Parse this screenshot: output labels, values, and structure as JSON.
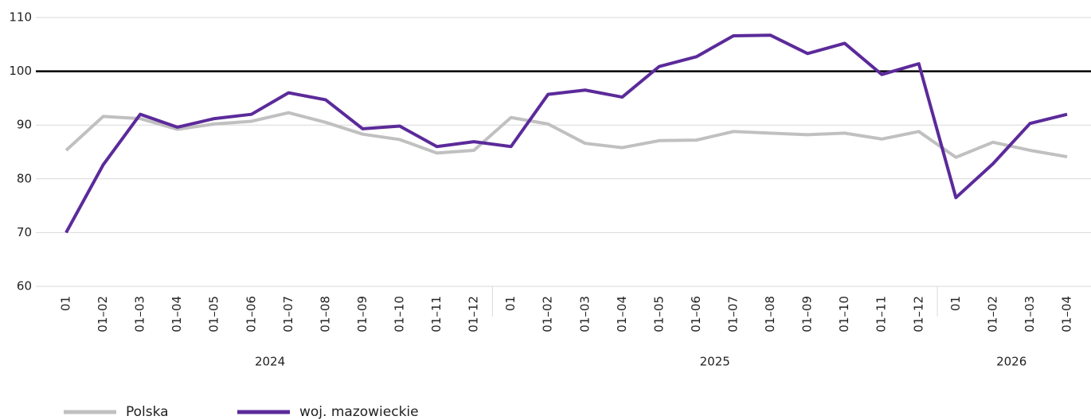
{
  "chart_data": {
    "type": "line",
    "categories": [
      "01",
      "01–02",
      "01–03",
      "01–04",
      "01–05",
      "01–06",
      "01–07",
      "01–08",
      "01–09",
      "01–10",
      "01–11",
      "01–12",
      "01",
      "01–02",
      "01–03",
      "01–04",
      "01–05",
      "01–06",
      "01–07",
      "01–08",
      "01–09",
      "01–10",
      "01–11",
      "01–12",
      "01",
      "01–02",
      "01–03",
      "01–04"
    ],
    "groups": [
      {
        "label": "2024",
        "count": 12
      },
      {
        "label": "2025",
        "count": 12
      },
      {
        "label": "2026",
        "count": 4
      }
    ],
    "series": [
      {
        "name": "Polska",
        "color": "#c0c0c0",
        "values": [
          85.3,
          91.6,
          91.2,
          89.2,
          90.2,
          90.7,
          92.3,
          90.5,
          88.3,
          87.3,
          84.8,
          85.3,
          91.4,
          90.2,
          86.6,
          85.8,
          87.1,
          87.2,
          88.8,
          88.5,
          88.2,
          88.5,
          87.4,
          88.8,
          84.0,
          86.8,
          85.3,
          84.1
        ]
      },
      {
        "name": "woj. mazowieckie",
        "color": "#5b2a9a",
        "values": [
          70.0,
          82.6,
          92.0,
          89.6,
          91.2,
          92.0,
          96.0,
          94.7,
          89.3,
          89.8,
          86.0,
          86.9,
          86.0,
          95.7,
          96.5,
          95.2,
          100.9,
          102.7,
          106.6,
          106.7,
          103.3,
          105.2,
          99.4,
          101.4,
          76.5,
          82.8,
          90.3,
          92.0
        ]
      }
    ],
    "reference_line": 100,
    "ylim": [
      60,
      110
    ],
    "yticks": [
      60,
      70,
      80,
      90,
      100,
      110
    ],
    "grid": true,
    "legend": "bottom"
  }
}
